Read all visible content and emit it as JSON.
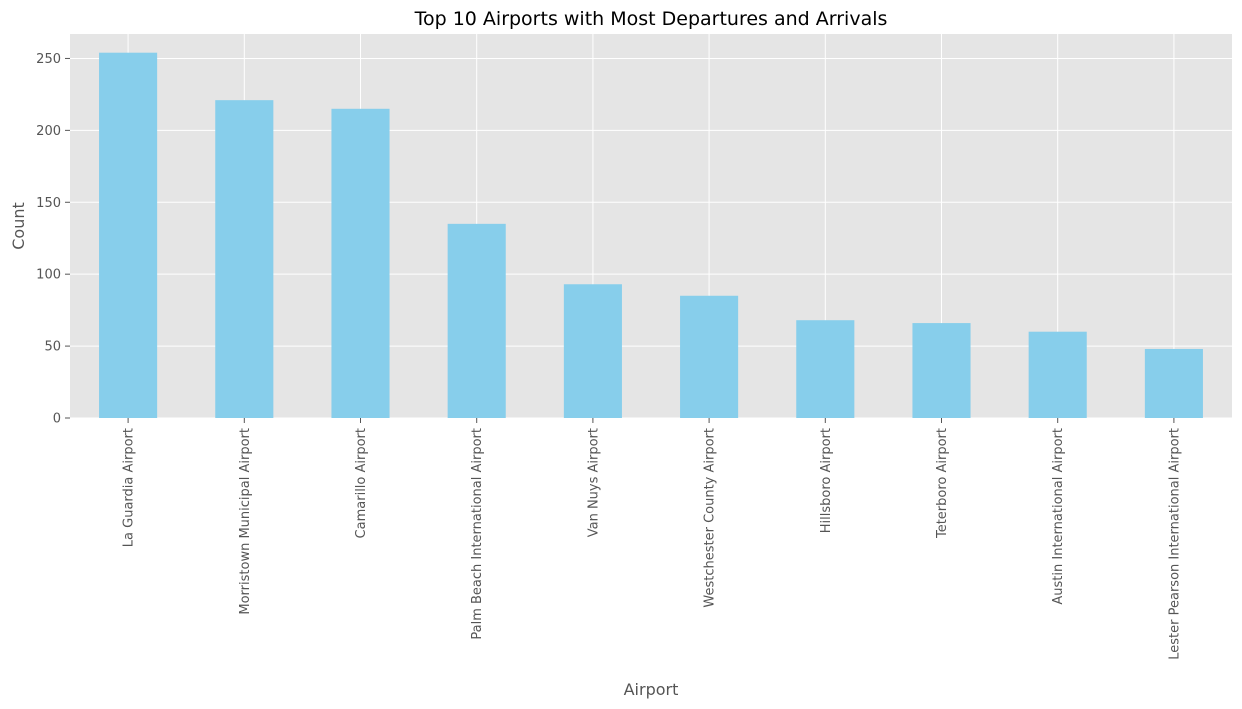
{
  "chart_data": {
    "type": "bar",
    "title": "Top 10 Airports with Most Departures and Arrivals",
    "xlabel": "Airport",
    "ylabel": "Count",
    "categories": [
      "La Guardia Airport",
      "Morristown Municipal Airport",
      "Camarillo Airport",
      "Palm Beach International Airport",
      "Van Nuys Airport",
      "Westchester County Airport",
      "Hillsboro Airport",
      "Teterboro Airport",
      "Austin International Airport",
      "Lester Pearson International Airport"
    ],
    "values": [
      254,
      221,
      215,
      135,
      93,
      85,
      68,
      66,
      60,
      48
    ],
    "ylim": [
      0,
      267
    ],
    "yticks": [
      0,
      50,
      100,
      150,
      200,
      250
    ],
    "grid": true,
    "bar_color": "#87ceeb",
    "background_color": "#e5e5e5",
    "grid_color": "#ffffff"
  }
}
